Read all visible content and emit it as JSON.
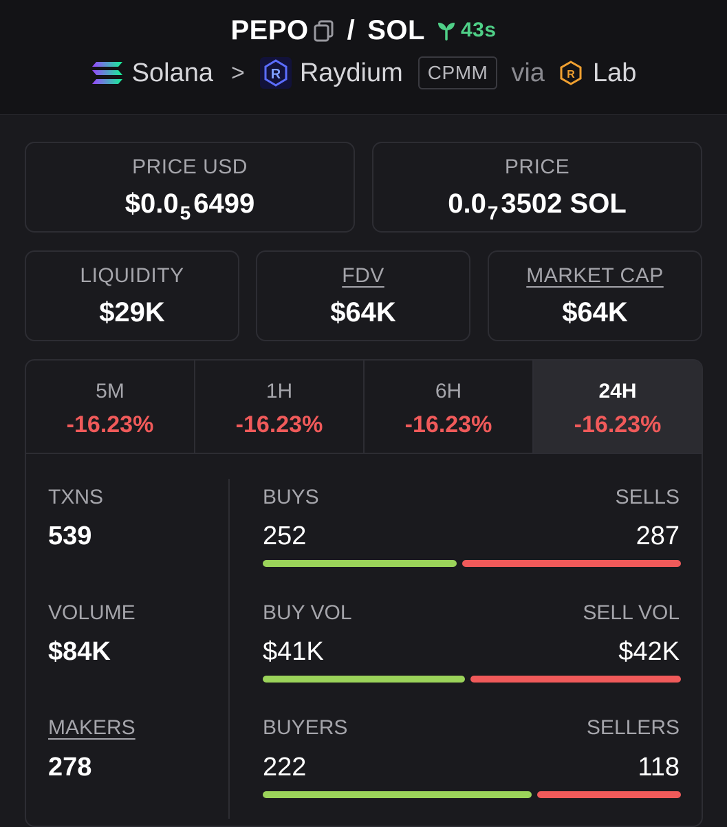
{
  "header": {
    "token": "PEPO",
    "separator": "/",
    "quote": "SOL",
    "age": "43s",
    "chain": "Solana",
    "dex": "Raydium",
    "pool_type": "CPMM",
    "via": "via",
    "launchpad": "Lab"
  },
  "price_usd": {
    "label": "PRICE USD",
    "prefix": "$0.0",
    "zeros": "5",
    "digits": "6499"
  },
  "price_native": {
    "label": "PRICE",
    "prefix": "0.0",
    "zeros": "7",
    "digits": "3502 SOL"
  },
  "metrics": [
    {
      "label": "LIQUIDITY",
      "value": "$29K"
    },
    {
      "label": "FDV",
      "value": "$64K"
    },
    {
      "label": "MARKET CAP",
      "value": "$64K"
    }
  ],
  "tabs": [
    {
      "label": "5M",
      "change": "-16.23%"
    },
    {
      "label": "1H",
      "change": "-16.23%"
    },
    {
      "label": "6H",
      "change": "-16.23%"
    },
    {
      "label": "24H",
      "change": "-16.23%",
      "active": true
    }
  ],
  "stats": {
    "txns": {
      "label": "TXNS",
      "value": "539",
      "left_label": "BUYS",
      "left_value": "252",
      "right_label": "SELLS",
      "right_value": "287",
      "buy_fraction": 0.47
    },
    "volume": {
      "label": "VOLUME",
      "value": "$84K",
      "left_label": "BUY VOL",
      "left_value": "$41K",
      "right_label": "SELL VOL",
      "right_value": "$42K",
      "buy_fraction": 0.49
    },
    "makers": {
      "label": "MAKERS",
      "value": "278",
      "left_label": "BUYERS",
      "left_value": "222",
      "right_label": "SELLERS",
      "right_value": "118",
      "buy_fraction": 0.65
    }
  },
  "colors": {
    "green": "#9bd35a",
    "red": "#f05a5a",
    "age_green": "#4fcf87"
  }
}
